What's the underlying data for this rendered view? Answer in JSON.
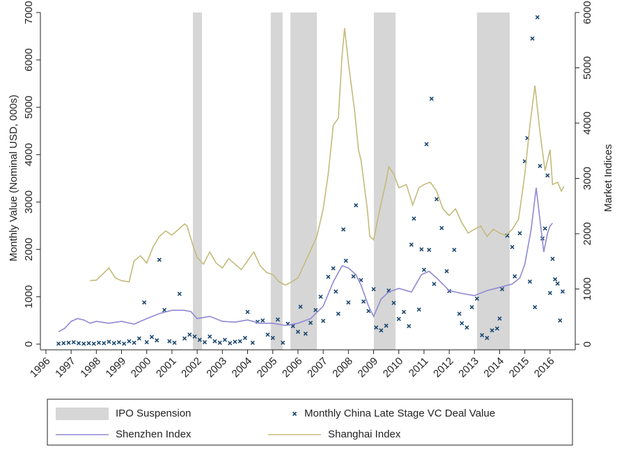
{
  "chart_data": {
    "type": "combo",
    "ylabel": "Monthly Value (Nominal USD, 000s)",
    "y2label": "Market Indices",
    "xlim": [
      1995.78,
      2017
    ],
    "xticks": [
      1996,
      1997,
      1998,
      1999,
      2000,
      2001,
      2002,
      2003,
      2004,
      2005,
      2006,
      2007,
      2008,
      2009,
      2010,
      2011,
      2012,
      2013,
      2014,
      2015,
      2016
    ],
    "ylim": [
      -120,
      7000
    ],
    "yticks": [
      0,
      1000,
      2000,
      3000,
      4000,
      5000,
      6000,
      7000
    ],
    "y2lim": [
      -100,
      6000
    ],
    "y2ticks": [
      0,
      1000,
      2000,
      3000,
      4000,
      5000,
      6000
    ],
    "legend": "bottom",
    "series": [
      {
        "name": "IPO Suspension",
        "type": "span",
        "color": "#d6d6d6",
        "start": [
          2001.83,
          2004.92,
          2005.7,
          2009.01,
          2013.1
        ],
        "end": [
          2002.19,
          2005.39,
          2006.75,
          2009.87,
          2014.4
        ]
      },
      {
        "name": "Monthly China Late Stage VC Deal Value",
        "type": "scatter",
        "color": "#1a476f",
        "x": [
          1996.5,
          1996.7,
          1996.9,
          1997.1,
          1997.3,
          1997.5,
          1997.7,
          1997.9,
          1998.1,
          1998.3,
          1998.5,
          1998.7,
          1998.9,
          1999.1,
          1999.3,
          1999.5,
          1999.7,
          1999.9,
          2000.0,
          2000.2,
          2000.4,
          2000.5,
          2000.7,
          2000.9,
          2001.1,
          2001.3,
          2001.5,
          2001.7,
          2001.9,
          2002.1,
          2002.3,
          2002.5,
          2002.7,
          2002.9,
          2003.1,
          2003.3,
          2003.5,
          2003.7,
          2003.9,
          2004.0,
          2004.2,
          2004.4,
          2004.6,
          2004.8,
          2005.0,
          2005.2,
          2005.4,
          2005.6,
          2005.8,
          2006.0,
          2006.1,
          2006.3,
          2006.5,
          2006.7,
          2006.9,
          2007.0,
          2007.2,
          2007.4,
          2007.5,
          2007.6,
          2007.8,
          2007.9,
          2008.0,
          2008.2,
          2008.3,
          2008.5,
          2008.6,
          2008.8,
          2009.0,
          2009.1,
          2009.3,
          2009.5,
          2009.6,
          2009.8,
          2010.0,
          2010.2,
          2010.4,
          2010.5,
          2010.6,
          2010.8,
          2010.9,
          2011.0,
          2011.1,
          2011.2,
          2011.3,
          2011.4,
          2011.5,
          2011.7,
          2011.9,
          2012.0,
          2012.2,
          2012.4,
          2012.5,
          2012.7,
          2012.9,
          2013.1,
          2013.3,
          2013.5,
          2013.7,
          2013.9,
          2014.0,
          2014.1,
          2014.3,
          2014.5,
          2014.6,
          2014.8,
          2015.0,
          2015.1,
          2015.2,
          2015.3,
          2015.4,
          2015.5,
          2015.6,
          2015.7,
          2015.8,
          2015.9,
          2016.0,
          2016.1,
          2016.2,
          2016.3,
          2016.4,
          2016.5
        ],
        "values": [
          10,
          20,
          30,
          40,
          20,
          10,
          20,
          10,
          30,
          20,
          50,
          20,
          40,
          10,
          60,
          30,
          120,
          880,
          40,
          150,
          80,
          1780,
          720,
          60,
          30,
          1060,
          120,
          200,
          160,
          90,
          40,
          160,
          60,
          30,
          90,
          20,
          50,
          60,
          130,
          680,
          30,
          470,
          500,
          200,
          130,
          520,
          30,
          430,
          380,
          260,
          790,
          220,
          450,
          720,
          1000,
          490,
          1420,
          1600,
          1110,
          640,
          2420,
          1760,
          880,
          1430,
          2930,
          1350,
          900,
          700,
          1160,
          350,
          290,
          390,
          1130,
          870,
          530,
          680,
          380,
          2100,
          2650,
          730,
          2000,
          1570,
          4220,
          1990,
          5180,
          1270,
          3060,
          2450,
          1540,
          1120,
          1990,
          640,
          440,
          350,
          780,
          960,
          190,
          130,
          290,
          330,
          540,
          1160,
          2290,
          2050,
          1430,
          2340,
          3860,
          4350,
          1320,
          6450,
          780,
          6900,
          3760,
          2230,
          2440,
          3560,
          1080,
          1800,
          1370,
          1280,
          500,
          1110
        ]
      },
      {
        "name": "Shenzhen Index",
        "type": "line",
        "axis": "y2",
        "color": "#9088d4",
        "x": [
          1996.5,
          1996.75,
          1997.0,
          1997.25,
          1997.5,
          1997.75,
          1998.0,
          1998.5,
          1999.0,
          1999.5,
          2000.0,
          2000.5,
          2001.0,
          2001.5,
          2001.75,
          2002.0,
          2002.5,
          2003.0,
          2003.5,
          2004.0,
          2004.5,
          2005.0,
          2005.5,
          2006.0,
          2006.5,
          2007.0,
          2007.4,
          2007.75,
          2008.0,
          2008.3,
          2008.5,
          2008.8,
          2009.0,
          2009.3,
          2009.6,
          2010.0,
          2010.5,
          2010.9,
          2011.2,
          2011.5,
          2012.0,
          2012.5,
          2013.0,
          2013.5,
          2014.0,
          2014.5,
          2014.8,
          2015.0,
          2015.25,
          2015.45,
          2015.55,
          2015.75,
          2015.9,
          2016.0,
          2016.1
        ],
        "values": [
          226,
          290,
          415,
          465,
          440,
          380,
          415,
          380,
          415,
          365,
          465,
          555,
          615,
          615,
          590,
          465,
          505,
          415,
          400,
          440,
          380,
          380,
          340,
          380,
          465,
          690,
          1130,
          1420,
          1380,
          1260,
          1070,
          690,
          505,
          820,
          945,
          1010,
          945,
          1260,
          1320,
          1200,
          970,
          920,
          880,
          970,
          1030,
          1090,
          1200,
          1450,
          2080,
          2830,
          2450,
          1670,
          2010,
          2140,
          2190
        ]
      },
      {
        "name": "Shanghai Index",
        "type": "line",
        "axis": "y2",
        "color": "#c4ba7a",
        "x": [
          1997.75,
          1998.0,
          1998.3,
          1998.5,
          1998.75,
          1999.0,
          1999.3,
          1999.5,
          1999.75,
          2000.0,
          2000.25,
          2000.5,
          2000.75,
          2001.0,
          2001.25,
          2001.5,
          2001.6,
          2001.85,
          2002.0,
          2002.25,
          2002.5,
          2002.75,
          2003.0,
          2003.25,
          2003.5,
          2003.75,
          2004.0,
          2004.25,
          2004.5,
          2004.75,
          2005.0,
          2005.25,
          2005.5,
          2005.75,
          2006.0,
          2006.25,
          2006.5,
          2006.75,
          2007.0,
          2007.2,
          2007.4,
          2007.6,
          2007.75,
          2007.85,
          2008.0,
          2008.25,
          2008.4,
          2008.5,
          2008.75,
          2008.85,
          2009.0,
          2009.25,
          2009.5,
          2009.6,
          2009.8,
          2010.0,
          2010.3,
          2010.55,
          2010.8,
          2011.0,
          2011.25,
          2011.5,
          2011.75,
          2012.0,
          2012.25,
          2012.5,
          2012.75,
          2013.0,
          2013.25,
          2013.5,
          2013.75,
          2014.0,
          2014.25,
          2014.5,
          2014.75,
          2015.0,
          2015.2,
          2015.4,
          2015.6,
          2015.8,
          2016.0,
          2016.1,
          2016.3,
          2016.45,
          2016.55
        ],
        "values": [
          1150,
          1160,
          1290,
          1380,
          1200,
          1150,
          1130,
          1510,
          1600,
          1470,
          1760,
          1950,
          2050,
          1975,
          2075,
          2175,
          2140,
          1760,
          1570,
          1450,
          1670,
          1470,
          1380,
          1550,
          1450,
          1350,
          1510,
          1670,
          1420,
          1300,
          1260,
          1130,
          1070,
          1130,
          1200,
          1450,
          1700,
          1950,
          2450,
          3080,
          3960,
          4090,
          5220,
          5720,
          5090,
          4210,
          3520,
          3330,
          2450,
          1950,
          1890,
          2450,
          2960,
          3210,
          3080,
          2830,
          2890,
          2520,
          2830,
          2890,
          2930,
          2770,
          2450,
          2330,
          2450,
          2200,
          2010,
          2080,
          2140,
          1950,
          2080,
          2010,
          1970,
          2080,
          2260,
          3080,
          3960,
          4680,
          3840,
          3140,
          3520,
          2890,
          2930,
          2770,
          2860
        ]
      }
    ]
  }
}
